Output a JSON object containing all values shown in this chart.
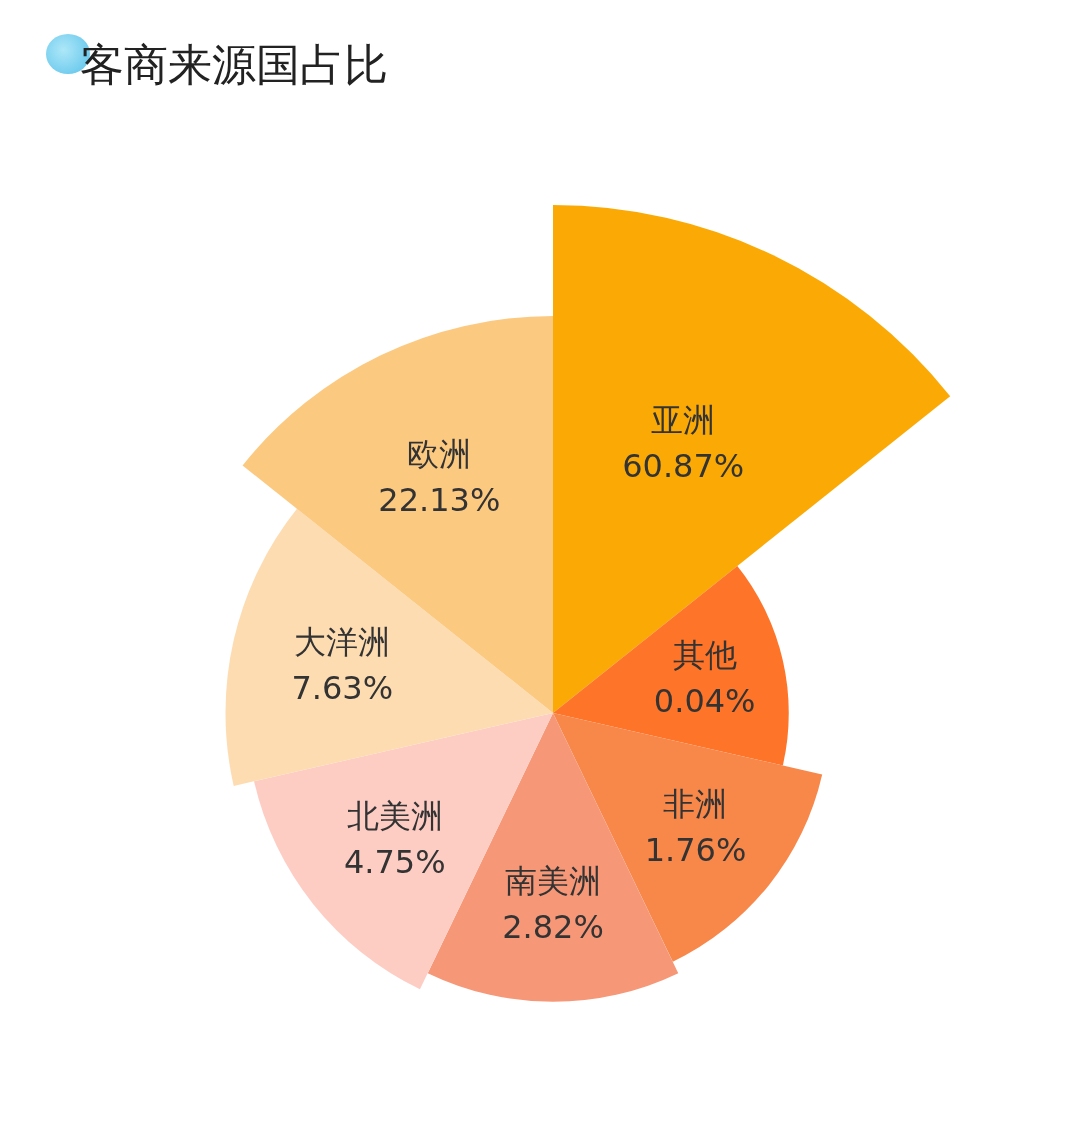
{
  "chart_data": {
    "type": "other",
    "title": "客商来源国占比",
    "categories": [
      "亚洲",
      "其他",
      "非洲",
      "南美洲",
      "北美洲",
      "大洋洲",
      "欧洲"
    ],
    "values": [
      60.87,
      0.04,
      1.76,
      2.82,
      4.75,
      7.63,
      22.13
    ],
    "value_labels": [
      "60.87%",
      "0.04%",
      "1.76%",
      "2.82%",
      "4.75%",
      "7.63%",
      "22.13%"
    ],
    "colors": [
      "#fbaa05",
      "#fe7428",
      "#f8874a",
      "#f69878",
      "#fdcdc4",
      "#fddcb1",
      "#fcc981"
    ]
  }
}
